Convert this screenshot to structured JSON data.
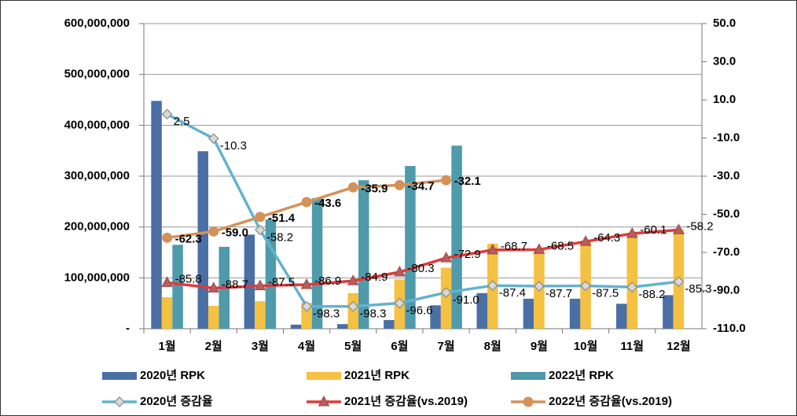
{
  "chart_data": {
    "type": "bar",
    "categories": [
      "1월",
      "2월",
      "3월",
      "4월",
      "5월",
      "6월",
      "7월",
      "8월",
      "9월",
      "10월",
      "11월",
      "12월"
    ],
    "ylim": [
      0,
      600000000
    ],
    "yticks": [
      {
        "value": 0,
        "label": "-"
      },
      {
        "value": 100000000,
        "label": "100,000,000"
      },
      {
        "value": 200000000,
        "label": "200,000,000"
      },
      {
        "value": 300000000,
        "label": "300,000,000"
      },
      {
        "value": 400000000,
        "label": "400,000,000"
      },
      {
        "value": 500000000,
        "label": "500,000,000"
      },
      {
        "value": 600000000,
        "label": "600,000,000"
      }
    ],
    "y2lim": [
      -110,
      50
    ],
    "y2ticks": [
      {
        "value": -110,
        "label": "-110.0"
      },
      {
        "value": -90,
        "label": "-90.0"
      },
      {
        "value": -70,
        "label": "-70.0"
      },
      {
        "value": -50,
        "label": "-50.0"
      },
      {
        "value": -30,
        "label": "-30.0"
      },
      {
        "value": -10,
        "label": "-10.0"
      },
      {
        "value": 10,
        "label": "10.0"
      },
      {
        "value": 30,
        "label": "30.0"
      },
      {
        "value": 50,
        "label": "50.0"
      }
    ],
    "grid": true,
    "series": [
      {
        "name": "2020년 RPK",
        "type": "bar",
        "color": "#4a6fa5",
        "values": [
          448000000,
          349000000,
          185000000,
          8000000,
          9000000,
          17000000,
          46000000,
          70000000,
          59000000,
          59000000,
          49000000,
          66000000
        ]
      },
      {
        "name": "2021년 RPK",
        "type": "bar",
        "color": "#f5c142",
        "values": [
          62000000,
          45000000,
          54000000,
          51000000,
          70000000,
          97000000,
          120000000,
          167000000,
          155000000,
          173000000,
          187000000,
          195000000
        ]
      },
      {
        "name": "2022년 RPK",
        "type": "bar",
        "color": "#4f9aab",
        "values": [
          165000000,
          161000000,
          215000000,
          257000000,
          292000000,
          320000000,
          360000000,
          null,
          null,
          null,
          null,
          null
        ]
      },
      {
        "name": "2020년 증감율",
        "type": "line",
        "axis": "y2",
        "color": "#62b3cf",
        "marker": "diamond",
        "values": [
          2.5,
          -10.3,
          -58.2,
          -98.3,
          -98.3,
          -96.6,
          -91,
          -87.4,
          -87.7,
          -87.5,
          -88.2,
          -85.3
        ],
        "value_labels": [
          "2.5",
          "-10.3",
          "-58.2",
          "-98.3",
          "-98.3",
          "-96.6",
          "-91.0",
          "-87.4",
          "-87.7",
          "-87.5",
          "-88.2",
          "-85.3"
        ]
      },
      {
        "name": "2021년 증감율(vs.2019)",
        "type": "line",
        "axis": "y2",
        "color": "#e03a3a",
        "marker": "triangle",
        "values": [
          -85.8,
          -88.7,
          -87.5,
          -86.9,
          -84.9,
          -80.3,
          -72.9,
          -68.7,
          -68.5,
          -64.3,
          -60.1,
          -58.2
        ],
        "value_labels": [
          "-85.8",
          "-88.7",
          "-87.5",
          "-86.9",
          "-84.9",
          "-80.3",
          "-72.9",
          "-68.7",
          "-68.5",
          "-64.3",
          "-60.1",
          "-58.2"
        ]
      },
      {
        "name": "2022년 증감율(vs.2019)",
        "type": "line",
        "axis": "y2",
        "color": "#d4925a",
        "marker": "circle",
        "values": [
          -62.3,
          -59,
          -51.4,
          -43.6,
          -35.9,
          -34.7,
          -32.1,
          null,
          null,
          null,
          null,
          null
        ],
        "value_labels": [
          "-62.3",
          "-59.0",
          "-51.4",
          "-43.6",
          "-35.9",
          "-34.7",
          "-32.1",
          null,
          null,
          null,
          null,
          null
        ]
      }
    ]
  }
}
